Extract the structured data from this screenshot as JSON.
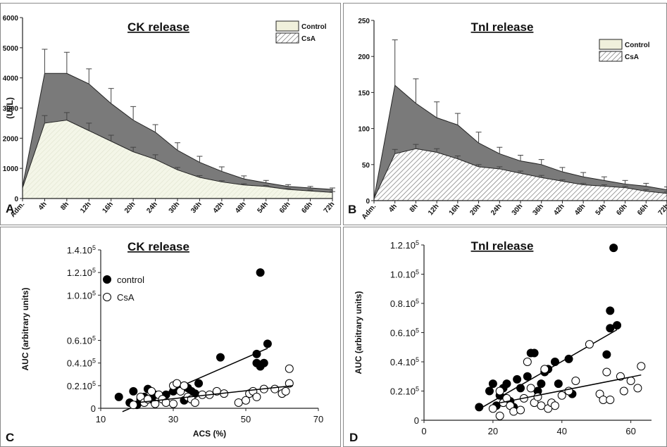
{
  "chart_data": [
    {
      "panel": "A",
      "type": "area",
      "title": "CK release",
      "ylabel": "(UI/L)",
      "ylim": [
        0,
        6000
      ],
      "yticks": [
        "0",
        "1000",
        "2000",
        "3000",
        "4000",
        "5000",
        "6000"
      ],
      "categories": [
        "Adm.",
        "4h",
        "8h",
        "12h",
        "16h",
        "20h",
        "24h",
        "30h",
        "36h",
        "42h",
        "48h",
        "54h",
        "60h",
        "66h",
        "72h"
      ],
      "legend": [
        "Control",
        "CsA"
      ],
      "series": [
        {
          "name": "Control",
          "values": [
            400,
            4150,
            4150,
            3800,
            3150,
            2600,
            2200,
            1600,
            1200,
            900,
            650,
            520,
            400,
            350,
            300
          ],
          "errors": [
            0,
            800,
            700,
            500,
            500,
            450,
            250,
            250,
            200,
            150,
            100,
            80,
            60,
            50,
            50
          ]
        },
        {
          "name": "CsA",
          "values": [
            350,
            2500,
            2600,
            2250,
            1900,
            1550,
            1300,
            950,
            700,
            550,
            450,
            400,
            300,
            250,
            200
          ],
          "errors": [
            0,
            250,
            250,
            250,
            200,
            150,
            150,
            80,
            60,
            40,
            40,
            30,
            30,
            30,
            30
          ]
        }
      ]
    },
    {
      "panel": "B",
      "type": "area",
      "title": "TnI release",
      "ylabel": "",
      "ylim": [
        0,
        250
      ],
      "yticks": [
        "0",
        "50",
        "100",
        "150",
        "200",
        "250"
      ],
      "categories": [
        "Adm.",
        "4h",
        "8h",
        "12h",
        "16h",
        "20h",
        "24h",
        "30h",
        "36h",
        "42h",
        "48h",
        "54h",
        "60h",
        "66h",
        "72h"
      ],
      "legend": [
        "Control",
        "CsA"
      ],
      "series": [
        {
          "name": "Control",
          "values": [
            3,
            160,
            135,
            115,
            105,
            80,
            65,
            55,
            50,
            40,
            33,
            28,
            23,
            20,
            15
          ],
          "errors": [
            0,
            63,
            34,
            22,
            16,
            15,
            9,
            8,
            7,
            6,
            6,
            5,
            5,
            4,
            4
          ]
        },
        {
          "name": "CsA",
          "values": [
            3,
            65,
            72,
            67,
            58,
            47,
            44,
            38,
            32,
            27,
            22,
            20,
            18,
            13,
            10
          ],
          "errors": [
            0,
            6,
            6,
            5,
            4,
            3,
            3,
            3,
            3,
            2,
            2,
            2,
            2,
            2,
            2
          ]
        }
      ]
    },
    {
      "panel": "C",
      "type": "scatter",
      "title": "CK release",
      "xlabel": "ACS (%)",
      "ylabel": "AUC (arbitrary units)",
      "xlim": [
        10,
        70
      ],
      "ylim": [
        0,
        140000
      ],
      "xticks": [
        "10",
        "30",
        "50",
        "70"
      ],
      "yticks": [
        "0",
        "0.2.10⁵",
        "0.4.10⁵",
        "0.6.10⁵",
        "1.0.10⁵",
        "1.2.10⁵",
        "1.4.10⁵"
      ],
      "legend": [
        "control",
        "CsA"
      ],
      "series": [
        {
          "name": "control",
          "points": [
            [
              15,
              10000
            ],
            [
              18,
              5000
            ],
            [
              19,
              15000
            ],
            [
              20,
              3000
            ],
            [
              21,
              8000
            ],
            [
              22,
              10000
            ],
            [
              23,
              17000
            ],
            [
              24,
              8000
            ],
            [
              25,
              12000
            ],
            [
              28,
              12000
            ],
            [
              30,
              15000
            ],
            [
              32,
              18000
            ],
            [
              33,
              20000
            ],
            [
              34,
              18000
            ],
            [
              35,
              15000
            ],
            [
              36,
              13000
            ],
            [
              37,
              22000
            ],
            [
              43,
              45000
            ],
            [
              53,
              40000
            ],
            [
              53,
              48000
            ],
            [
              54,
              37000
            ],
            [
              54,
              120000
            ],
            [
              55,
              40000
            ],
            [
              56,
              57000
            ],
            [
              33,
              7000
            ]
          ],
          "fit": [
            [
              16,
              -3000
            ],
            [
              56,
              53000
            ]
          ]
        },
        {
          "name": "CsA",
          "points": [
            [
              19,
              3000
            ],
            [
              21,
              10000
            ],
            [
              22,
              5000
            ],
            [
              23,
              8000
            ],
            [
              24,
              15000
            ],
            [
              25,
              4000
            ],
            [
              26,
              12000
            ],
            [
              27,
              8000
            ],
            [
              28,
              5000
            ],
            [
              30,
              20000
            ],
            [
              31,
              22000
            ],
            [
              32,
              15000
            ],
            [
              33,
              20000
            ],
            [
              34,
              10000
            ],
            [
              35,
              8000
            ],
            [
              36,
              5000
            ],
            [
              38,
              12000
            ],
            [
              40,
              12000
            ],
            [
              42,
              15000
            ],
            [
              44,
              13000
            ],
            [
              48,
              5000
            ],
            [
              50,
              7000
            ],
            [
              51,
              13000
            ],
            [
              52,
              15000
            ],
            [
              53,
              10000
            ],
            [
              55,
              17000
            ],
            [
              58,
              17000
            ],
            [
              60,
              13000
            ],
            [
              61,
              15000
            ],
            [
              62,
              35000
            ],
            [
              62,
              22000
            ],
            [
              30,
              4000
            ]
          ],
          "fit": [
            [
              20,
              5000
            ],
            [
              63,
              20000
            ]
          ]
        }
      ]
    },
    {
      "panel": "D",
      "type": "scatter",
      "title": "TnI release",
      "ylabel": "AUC (arbitrary units)",
      "xlim": [
        0,
        66
      ],
      "ylim": [
        0,
        120000
      ],
      "xticks": [
        "0",
        "20",
        "40",
        "60"
      ],
      "yticks": [
        "0",
        "0.2.10⁵",
        "0.4.10⁵",
        "0.6.10⁵",
        "0.8.10⁵",
        "1.0.10⁵",
        "1.2.10⁵"
      ],
      "series": [
        {
          "name": "control",
          "points": [
            [
              16,
              9000
            ],
            [
              19,
              20000
            ],
            [
              20,
              25000
            ],
            [
              21,
              10000
            ],
            [
              22,
              17000
            ],
            [
              23,
              22000
            ],
            [
              24,
              25000
            ],
            [
              25,
              13000
            ],
            [
              26,
              9000
            ],
            [
              27,
              28000
            ],
            [
              28,
              22000
            ],
            [
              30,
              30000
            ],
            [
              31,
              46000
            ],
            [
              32,
              46000
            ],
            [
              33,
              20000
            ],
            [
              34,
              25000
            ],
            [
              35,
              33000
            ],
            [
              36,
              35000
            ],
            [
              38,
              40000
            ],
            [
              39,
              25000
            ],
            [
              42,
              42000
            ],
            [
              43,
              18000
            ],
            [
              53,
              45000
            ],
            [
              54,
              75000
            ],
            [
              54,
              63000
            ],
            [
              55,
              118000
            ],
            [
              56,
              65000
            ]
          ],
          "fit": [
            [
              17,
              9000
            ],
            [
              56,
              62000
            ]
          ]
        },
        {
          "name": "CsA",
          "points": [
            [
              20,
              8000
            ],
            [
              22,
              3000
            ],
            [
              23,
              12000
            ],
            [
              24,
              15000
            ],
            [
              25,
              10000
            ],
            [
              26,
              6000
            ],
            [
              28,
              7000
            ],
            [
              29,
              15000
            ],
            [
              30,
              40000
            ],
            [
              31,
              22000
            ],
            [
              32,
              12000
            ],
            [
              33,
              16000
            ],
            [
              34,
              10000
            ],
            [
              35,
              35000
            ],
            [
              36,
              8000
            ],
            [
              37,
              12000
            ],
            [
              38,
              10000
            ],
            [
              40,
              17000
            ],
            [
              42,
              20000
            ],
            [
              44,
              27000
            ],
            [
              48,
              52000
            ],
            [
              51,
              18000
            ],
            [
              52,
              14000
            ],
            [
              53,
              33000
            ],
            [
              54,
              14000
            ],
            [
              57,
              30000
            ],
            [
              58,
              20000
            ],
            [
              60,
              27000
            ],
            [
              62,
              22000
            ],
            [
              63,
              37000
            ],
            [
              22,
              20000
            ]
          ],
          "fit": [
            [
              20,
              11000
            ],
            [
              63,
              31000
            ]
          ]
        }
      ]
    }
  ]
}
